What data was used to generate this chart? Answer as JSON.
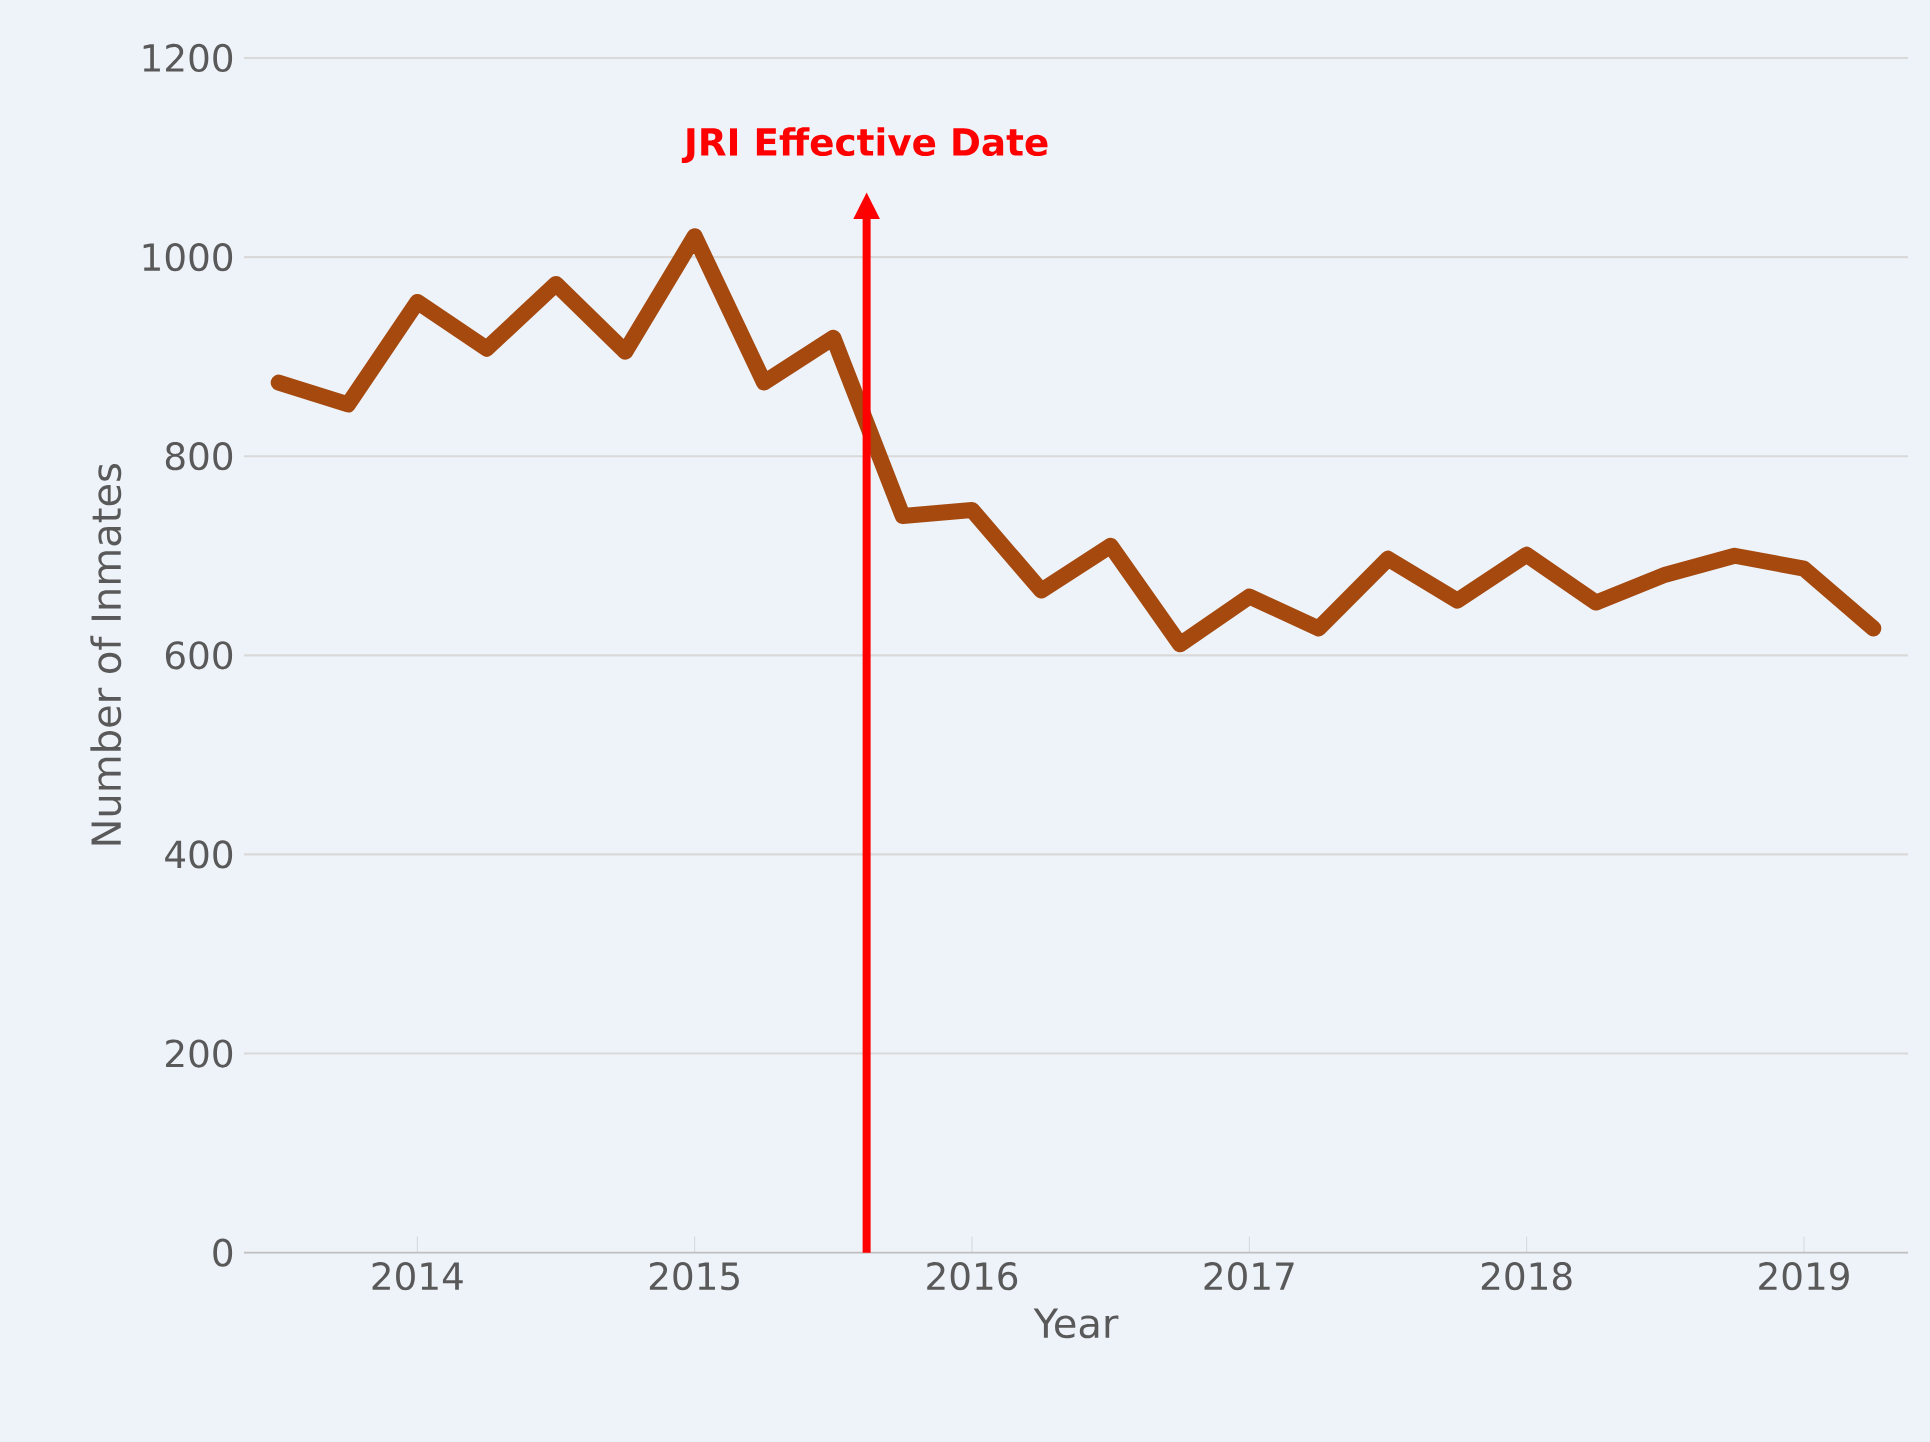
{
  "chart_data": {
    "type": "line",
    "xlabel": "Year",
    "ylabel": "Number of Inmates",
    "x": [
      2013.5,
      2013.75,
      2014,
      2014.25,
      2014.5,
      2014.75,
      2015,
      2015.25,
      2015.5,
      2015.75,
      2016,
      2016.25,
      2016.5,
      2016.75,
      2017,
      2017.25,
      2017.5,
      2017.75,
      2018,
      2018.25,
      2018.5,
      2018.75,
      2019,
      2019.25
    ],
    "series": [
      {
        "color": "#a5490f",
        "values": [
          874,
          852,
          955,
          908,
          973,
          905,
          1021,
          874,
          919,
          740,
          746,
          665,
          710,
          611,
          659,
          627,
          697,
          655,
          701,
          653,
          681,
          700,
          687,
          627
        ]
      }
    ],
    "xlim": [
      2013.375,
      2019.375
    ],
    "xticks": [
      2014,
      2015,
      2016,
      2017,
      2018,
      2019
    ],
    "ylim": [
      0,
      1200
    ],
    "yticks": [
      0,
      200,
      400,
      600,
      800,
      1000,
      1200
    ],
    "grid": "y",
    "marker": "none",
    "line_style": "solid",
    "ref_lines": [
      {
        "axis": "x",
        "value": 2015.62,
        "label": "JRI Effective Date",
        "color": "#ff0000"
      }
    ]
  }
}
